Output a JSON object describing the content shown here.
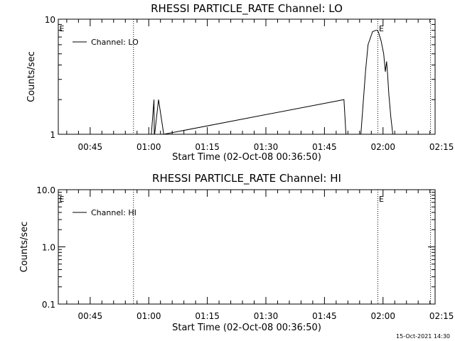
{
  "footer": {
    "timestamp": "15-Oct-2021 14:30"
  },
  "chart_data": [
    {
      "type": "line",
      "title": "RHESSI PARTICLE_RATE Channel: LO",
      "xlabel": "Start Time (02-Oct-08 00:36:50)",
      "ylabel": "Counts/sec",
      "yscale": "log",
      "ylim": [
        1,
        10
      ],
      "y_tick_labels": [
        "1",
        "10"
      ],
      "xlim_seconds_from_start": [
        0,
        5790
      ],
      "x_tick_labels": [
        "00:45",
        "01:00",
        "01:15",
        "01:30",
        "01:45",
        "02:00",
        "02:15"
      ],
      "x_tick_seconds": [
        490,
        1390,
        2290,
        3190,
        4090,
        4990,
        5890
      ],
      "event_markers": [
        {
          "label": "",
          "time_seconds": 1155
        },
        {
          "label": "E",
          "time_seconds": 4910
        },
        {
          "label": "",
          "time_seconds": 5720
        }
      ],
      "corner_label": "E",
      "legend_position": "top-left",
      "series": [
        {
          "name": "Channel: LO",
          "x": [
            1430,
            1470,
            1475,
            1480,
            1540,
            1620,
            4390,
            4420,
            4520,
            4650,
            4720,
            4760,
            4800,
            4830,
            4880,
            4905,
            4920,
            4960,
            5000,
            5025,
            5045,
            5060,
            5080,
            5110,
            5140,
            5180
          ],
          "y": [
            1.0,
            2.0,
            1.0,
            1.0,
            2.0,
            1.0,
            2.0,
            1.0,
            1.0,
            1.0,
            3.5,
            6.0,
            7.0,
            7.8,
            8.0,
            8.0,
            7.7,
            6.5,
            5.0,
            3.5,
            4.3,
            3.3,
            2.2,
            1.4,
            1.0,
            1.0
          ]
        }
      ]
    },
    {
      "type": "line",
      "title": "RHESSI PARTICLE_RATE Channel: HI",
      "xlabel": "Start Time (02-Oct-08 00:36:50)",
      "ylabel": "Counts/sec",
      "yscale": "log",
      "ylim": [
        0.1,
        10
      ],
      "y_tick_labels": [
        "0.1",
        "1.0",
        "10.0"
      ],
      "xlim_seconds_from_start": [
        0,
        5790
      ],
      "x_tick_labels": [
        "00:45",
        "01:00",
        "01:15",
        "01:30",
        "01:45",
        "02:00",
        "02:15"
      ],
      "x_tick_seconds": [
        490,
        1390,
        2290,
        3190,
        4090,
        4990,
        5890
      ],
      "event_markers": [
        {
          "label": "",
          "time_seconds": 1155
        },
        {
          "label": "E",
          "time_seconds": 4910
        },
        {
          "label": "",
          "time_seconds": 5720
        }
      ],
      "corner_label": "E",
      "legend_position": "top-left",
      "series": [
        {
          "name": "Channel: HI",
          "x": [],
          "y": []
        }
      ]
    }
  ]
}
